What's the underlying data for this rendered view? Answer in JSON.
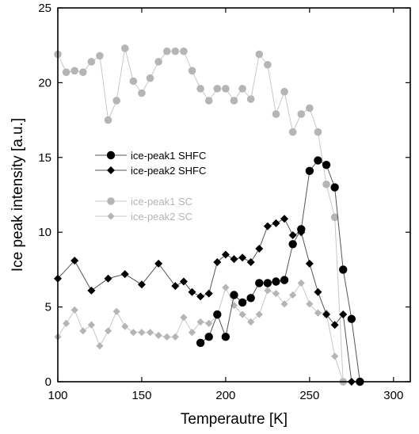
{
  "chart_data": {
    "type": "line",
    "xlabel": "Temperautre [K]",
    "ylabel": "Ice peak intensity [a.u.]",
    "xlim": [
      100,
      310
    ],
    "ylim": [
      0,
      25
    ],
    "x_ticks": [
      100,
      150,
      200,
      250,
      300
    ],
    "y_ticks": [
      0,
      5,
      10,
      15,
      20,
      25
    ],
    "grid": false,
    "legend_position": "center-left",
    "colors": {
      "black": "#000000",
      "black_line": "#555555",
      "gray": "#b5b5b5",
      "gray_line": "#c8c8c8",
      "frame": "#000000"
    },
    "series": [
      {
        "name": "ice-peak1 SHFC",
        "marker": "circle",
        "color": "black",
        "x": [
          185,
          190,
          195,
          200,
          205,
          210,
          215,
          220,
          225,
          230,
          235,
          240,
          245,
          250,
          255,
          260,
          265,
          270,
          275,
          280
        ],
        "y": [
          2.6,
          3.0,
          4.5,
          3.0,
          5.8,
          5.3,
          5.6,
          6.6,
          6.6,
          6.7,
          6.8,
          9.2,
          10.2,
          14.1,
          14.8,
          14.5,
          13.0,
          7.5,
          4.2,
          0.0
        ]
      },
      {
        "name": "ice-peak2 SHFC",
        "marker": "diamond",
        "color": "black",
        "x": [
          100,
          110,
          120,
          130,
          140,
          150,
          160,
          170,
          175,
          180,
          185,
          190,
          195,
          200,
          205,
          210,
          215,
          220,
          225,
          230,
          235,
          240,
          245,
          250,
          255,
          260,
          265,
          270,
          275
        ],
        "y": [
          6.9,
          8.1,
          6.1,
          6.9,
          7.2,
          6.5,
          7.9,
          6.4,
          6.7,
          6.0,
          5.7,
          5.9,
          8.0,
          8.5,
          8.2,
          8.3,
          8.0,
          8.9,
          10.4,
          10.6,
          10.9,
          9.8,
          10.0,
          7.9,
          6.0,
          4.5,
          3.8,
          4.5,
          0.0
        ]
      },
      {
        "name": "ice-peak1 SC",
        "marker": "circle",
        "color": "gray",
        "x": [
          100,
          105,
          110,
          115,
          120,
          125,
          130,
          135,
          140,
          145,
          150,
          155,
          160,
          165,
          170,
          175,
          180,
          185,
          190,
          195,
          200,
          205,
          210,
          215,
          220,
          225,
          230,
          235,
          240,
          245,
          250,
          255,
          260,
          265,
          270
        ],
        "y": [
          21.9,
          20.7,
          20.8,
          20.7,
          21.4,
          21.8,
          17.5,
          18.8,
          22.3,
          20.1,
          19.3,
          20.3,
          21.4,
          22.1,
          22.1,
          22.1,
          20.8,
          19.6,
          18.8,
          19.6,
          19.6,
          18.8,
          19.6,
          18.9,
          21.9,
          21.2,
          17.9,
          19.4,
          16.7,
          17.9,
          18.3,
          16.7,
          13.2,
          11.0,
          0.0
        ]
      },
      {
        "name": "ice-peak2 SC",
        "marker": "diamond",
        "color": "gray",
        "x": [
          100,
          105,
          110,
          115,
          120,
          125,
          130,
          135,
          140,
          145,
          150,
          155,
          160,
          165,
          170,
          175,
          180,
          185,
          190,
          195,
          200,
          205,
          210,
          215,
          220,
          225,
          230,
          235,
          240,
          245,
          250,
          255,
          260,
          265,
          270
        ],
        "y": [
          3.0,
          3.9,
          4.8,
          3.4,
          3.8,
          2.4,
          3.4,
          4.7,
          3.7,
          3.3,
          3.3,
          3.3,
          3.1,
          3.0,
          3.0,
          4.3,
          3.3,
          4.0,
          3.9,
          4.4,
          6.3,
          5.1,
          4.5,
          4.0,
          4.5,
          6.1,
          5.9,
          5.2,
          5.8,
          6.6,
          5.2,
          4.6,
          4.6,
          1.7,
          0.0
        ]
      }
    ]
  }
}
